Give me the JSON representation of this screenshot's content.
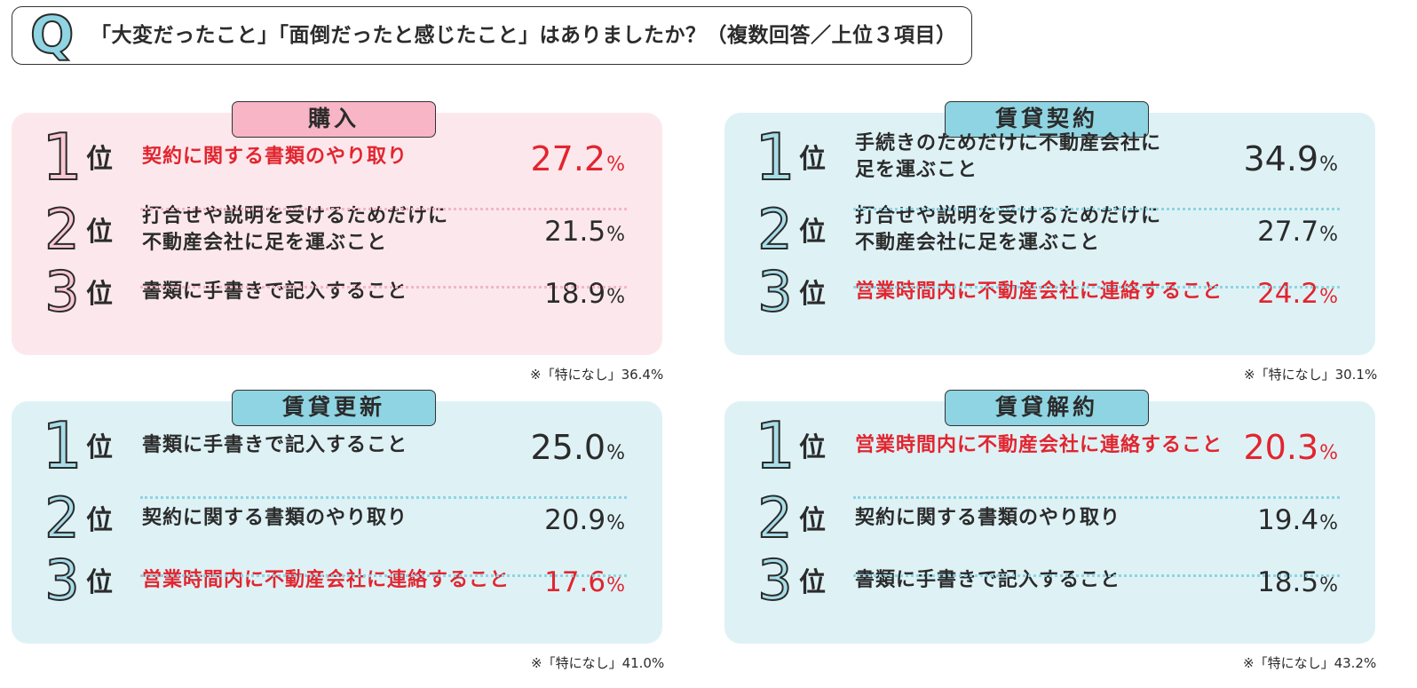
{
  "question": {
    "letter": "Q",
    "text": "「大変だったこと」「面倒だったと感じたこと」はありましたか？（複数回答／上位３項目）"
  },
  "rank_suffix": "位",
  "percent_sign": "%",
  "colors": {
    "pink_bg": "#fce8ec",
    "blue_bg": "#def2f6",
    "highlight_red": "#e2252f"
  },
  "panels": [
    {
      "title": "購入",
      "note": "※「特になし」36.4%",
      "items": [
        {
          "rank": "1",
          "text": "契約に関する書類のやり取り",
          "value": "27.2",
          "highlight": true
        },
        {
          "rank": "2",
          "text": "打合せや説明を受けるためだけに\n不動産会社に足を運ぶこと",
          "value": "21.5",
          "highlight": false
        },
        {
          "rank": "3",
          "text": "書類に手書きで記入すること",
          "value": "18.9",
          "highlight": false
        }
      ]
    },
    {
      "title": "賃貸契約",
      "note": "※「特になし」30.1%",
      "items": [
        {
          "rank": "1",
          "text": "手続きのためだけに不動産会社に\n足を運ぶこと",
          "value": "34.9",
          "highlight": false
        },
        {
          "rank": "2",
          "text": "打合せや説明を受けるためだけに\n不動産会社に足を運ぶこと",
          "value": "27.7",
          "highlight": false
        },
        {
          "rank": "3",
          "text": "営業時間内に不動産会社に連絡すること",
          "value": "24.2",
          "highlight": true
        }
      ]
    },
    {
      "title": "賃貸更新",
      "note": "※「特になし」41.0%",
      "items": [
        {
          "rank": "1",
          "text": "書類に手書きで記入すること",
          "value": "25.0",
          "highlight": false
        },
        {
          "rank": "2",
          "text": "契約に関する書類のやり取り",
          "value": "20.9",
          "highlight": false
        },
        {
          "rank": "3",
          "text": "営業時間内に不動産会社に連絡すること",
          "value": "17.6",
          "highlight": true
        }
      ]
    },
    {
      "title": "賃貸解約",
      "note": "※「特になし」43.2%",
      "items": [
        {
          "rank": "1",
          "text": "営業時間内に不動産会社に連絡すること",
          "value": "20.3",
          "highlight": true
        },
        {
          "rank": "2",
          "text": "契約に関する書類のやり取り",
          "value": "19.4",
          "highlight": false
        },
        {
          "rank": "3",
          "text": "書類に手書きで記入すること",
          "value": "18.5",
          "highlight": false
        }
      ]
    }
  ]
}
